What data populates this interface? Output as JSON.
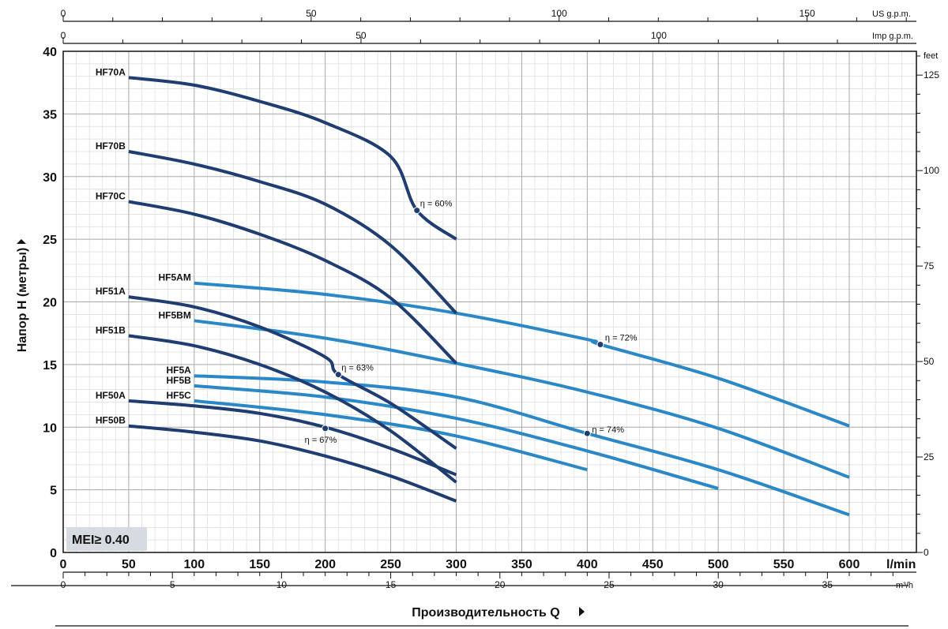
{
  "chart_data": {
    "type": "line",
    "ylabel": "Напор H (метры)",
    "xlabel": "Производительность Q",
    "x_unit": "l/min",
    "xlim": [
      0,
      640
    ],
    "ylim": [
      0,
      40
    ],
    "x_ticks": [
      0,
      50,
      100,
      150,
      200,
      250,
      300,
      350,
      400,
      450,
      500,
      550,
      600
    ],
    "y_ticks": [
      0,
      5,
      10,
      15,
      20,
      25,
      30,
      35,
      40
    ],
    "grid": true,
    "secondary_axes": {
      "top_us": {
        "unit": "US g.p.m.",
        "ticks": [
          "0",
          "50",
          "100",
          "150"
        ]
      },
      "top_imp": {
        "unit": "Imp g.p.m.",
        "ticks": [
          "0",
          "50",
          "100"
        ]
      },
      "right_feet": {
        "unit": "feet",
        "ticks": [
          "0",
          "25",
          "50",
          "75",
          "100",
          "125"
        ]
      },
      "bottom_m3h": {
        "unit": "m³/h",
        "ticks": [
          "0",
          "5",
          "10",
          "15",
          "20",
          "25",
          "30",
          "35"
        ]
      }
    },
    "series": [
      {
        "name": "HF70A",
        "color": "#1f3d73",
        "points": [
          [
            50,
            37.9
          ],
          [
            100,
            37.3
          ],
          [
            150,
            36.0
          ],
          [
            200,
            34.3
          ],
          [
            250,
            31.6
          ],
          [
            270,
            27.3
          ],
          [
            300,
            25.0
          ]
        ]
      },
      {
        "name": "HF70B",
        "color": "#1f3d73",
        "points": [
          [
            50,
            32.0
          ],
          [
            100,
            31.0
          ],
          [
            150,
            29.6
          ],
          [
            200,
            27.8
          ],
          [
            250,
            24.5
          ],
          [
            300,
            19.1
          ]
        ]
      },
      {
        "name": "HF70C",
        "color": "#1f3d73",
        "points": [
          [
            50,
            28.0
          ],
          [
            100,
            27.0
          ],
          [
            150,
            25.4
          ],
          [
            200,
            23.3
          ],
          [
            250,
            20.3
          ],
          [
            300,
            15.1
          ]
        ]
      },
      {
        "name": "HF51A",
        "color": "#1f3d73",
        "points": [
          [
            50,
            20.4
          ],
          [
            100,
            19.6
          ],
          [
            150,
            18.0
          ],
          [
            200,
            15.6
          ],
          [
            210,
            14.2
          ],
          [
            250,
            11.9
          ],
          [
            300,
            8.3
          ]
        ]
      },
      {
        "name": "HF51B",
        "color": "#1f3d73",
        "points": [
          [
            50,
            17.3
          ],
          [
            100,
            16.5
          ],
          [
            150,
            15.0
          ],
          [
            200,
            12.8
          ],
          [
            250,
            9.7
          ],
          [
            300,
            5.6
          ]
        ]
      },
      {
        "name": "HF50A",
        "color": "#1f3d73",
        "points": [
          [
            50,
            12.1
          ],
          [
            100,
            11.7
          ],
          [
            150,
            11.1
          ],
          [
            200,
            10.0
          ],
          [
            250,
            8.3
          ],
          [
            300,
            6.2
          ]
        ]
      },
      {
        "name": "HF50B",
        "color": "#1f3d73",
        "points": [
          [
            50,
            10.1
          ],
          [
            100,
            9.6
          ],
          [
            150,
            8.9
          ],
          [
            200,
            7.7
          ],
          [
            250,
            6.1
          ],
          [
            300,
            4.1
          ]
        ]
      },
      {
        "name": "HF5AM",
        "color": "#2a88c8",
        "points": [
          [
            100,
            21.5
          ],
          [
            200,
            20.6
          ],
          [
            300,
            19.1
          ],
          [
            400,
            17.0
          ],
          [
            410,
            16.6
          ],
          [
            500,
            13.9
          ],
          [
            600,
            10.1
          ]
        ]
      },
      {
        "name": "HF5BM",
        "color": "#2a88c8",
        "points": [
          [
            100,
            18.5
          ],
          [
            200,
            17.1
          ],
          [
            300,
            15.1
          ],
          [
            400,
            12.8
          ],
          [
            500,
            9.9
          ],
          [
            600,
            6.0
          ]
        ]
      },
      {
        "name": "HF5A",
        "color": "#2a88c8",
        "points": [
          [
            100,
            14.1
          ],
          [
            200,
            13.6
          ],
          [
            300,
            12.4
          ],
          [
            400,
            9.5
          ],
          [
            500,
            6.6
          ],
          [
            600,
            3.0
          ]
        ]
      },
      {
        "name": "HF5B",
        "color": "#2a88c8",
        "points": [
          [
            100,
            13.3
          ],
          [
            200,
            12.4
          ],
          [
            300,
            10.7
          ],
          [
            400,
            8.1
          ],
          [
            500,
            5.1
          ]
        ]
      },
      {
        "name": "HF5C",
        "color": "#2a88c8",
        "points": [
          [
            100,
            12.1
          ],
          [
            200,
            11.0
          ],
          [
            300,
            9.3
          ],
          [
            400,
            6.6
          ]
        ]
      }
    ],
    "efficiency_points": [
      {
        "label": "η = 60%",
        "x": 270,
        "y": 27.3
      },
      {
        "label": "η = 63%",
        "x": 210,
        "y": 14.2
      },
      {
        "label": "η = 67%",
        "x": 200,
        "y": 9.9
      },
      {
        "label": "η = 72%",
        "x": 410,
        "y": 16.6
      },
      {
        "label": "η = 74%",
        "x": 400,
        "y": 9.5
      }
    ],
    "badge": "MEI≥ 0.40"
  }
}
